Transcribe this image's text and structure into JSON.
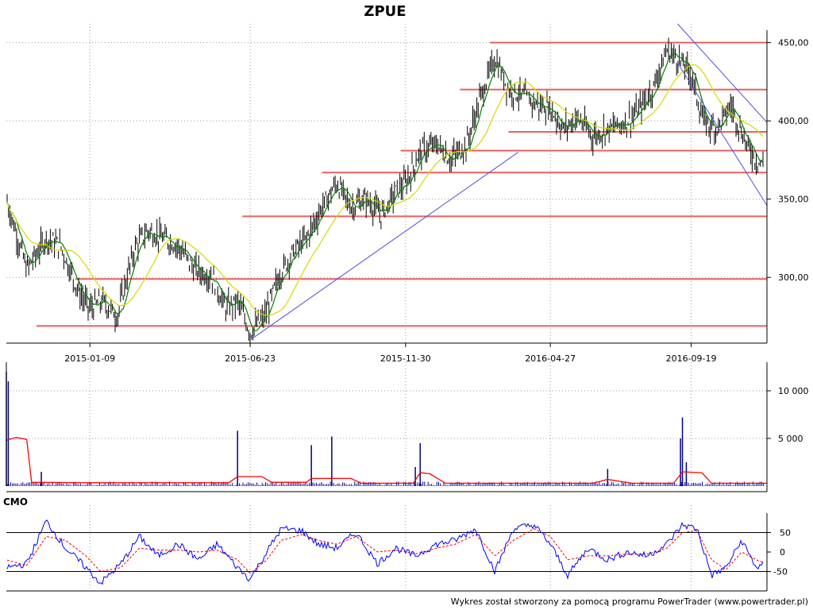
{
  "title": "ZPUE",
  "footer": "Wykres został stworzony za pomocą programu PowerTrader (www.powertrader.pl)",
  "cmo_label": "CMO",
  "colors": {
    "candle": "#000000",
    "sma_short": "#008000",
    "sma_long": "#d8d800",
    "support_resistance": "#e86060",
    "trendline": "#5050e0",
    "volume": "#00008b",
    "volume_avg": "#ff0000",
    "cmo": "#0000ff",
    "cmo_signal": "#ff0000",
    "cmo_levels": "#000000"
  },
  "chart_data": [
    {
      "type": "line",
      "panel": "price",
      "title": "ZPUE",
      "x_tick_labels": [
        "2015-01-09",
        "2015-06-23",
        "2015-11-30",
        "2016-04-27",
        "2016-09-19"
      ],
      "y_tick_labels": [
        "450,00",
        "400,00",
        "350,00",
        "300,00"
      ],
      "x_range": [
        "2014-10-15",
        "2016-12-06"
      ],
      "ylim": [
        258,
        462
      ],
      "grid": true,
      "series": [
        {
          "values_kind": "close_approx",
          "x": [
            "2014-10-15",
            "2014-11-05",
            "2014-11-25",
            "2014-12-10",
            "2014-12-29",
            "2015-01-09",
            "2015-01-22",
            "2015-02-06",
            "2015-02-16",
            "2015-02-25",
            "2015-03-10",
            "2015-03-25",
            "2015-04-10",
            "2015-04-27",
            "2015-05-15",
            "2015-05-29",
            "2015-06-10",
            "2015-06-23",
            "2015-07-08",
            "2015-07-22",
            "2015-08-05",
            "2015-08-20",
            "2015-09-05",
            "2015-09-20",
            "2015-10-05",
            "2015-10-20",
            "2015-11-05",
            "2015-11-20",
            "2015-11-30",
            "2015-12-15",
            "2016-01-01",
            "2016-01-15",
            "2016-02-01",
            "2016-02-15",
            "2016-03-01",
            "2016-03-15",
            "2016-04-01",
            "2016-04-15",
            "2016-04-27",
            "2016-05-10",
            "2016-05-25",
            "2016-06-10",
            "2016-06-25",
            "2016-07-10",
            "2016-07-25",
            "2016-08-10",
            "2016-08-25",
            "2016-09-05",
            "2016-09-19",
            "2016-10-01",
            "2016-10-15",
            "2016-10-30",
            "2016-11-15",
            "2016-11-25",
            "2016-12-06"
          ],
          "values": [
            350,
            305,
            325,
            320,
            290,
            280,
            285,
            275,
            300,
            320,
            330,
            325,
            320,
            305,
            300,
            280,
            285,
            265,
            275,
            300,
            315,
            325,
            345,
            360,
            345,
            350,
            340,
            355,
            360,
            380,
            385,
            375,
            385,
            415,
            440,
            420,
            415,
            410,
            408,
            395,
            402,
            390,
            395,
            398,
            405,
            420,
            445,
            440,
            430,
            400,
            395,
            410,
            385,
            375,
            370
          ]
        }
      ],
      "support_resistance_levels": [
        450,
        420,
        393,
        381,
        367,
        339,
        299,
        269
      ],
      "trendlines": [
        {
          "from": {
            "x": "2015-06-23",
            "y": 260
          },
          "to": {
            "x": "2016-03-25",
            "y": 380
          }
        },
        {
          "from": {
            "x": "2016-09-05",
            "y": 437
          },
          "to": {
            "x": "2016-12-06",
            "y": 346
          }
        },
        {
          "from": {
            "x": "2016-09-05",
            "y": 462
          },
          "to": {
            "x": "2016-12-06",
            "y": 399
          }
        }
      ]
    },
    {
      "type": "bar",
      "panel": "volume",
      "y_tick_labels": [
        "10 000",
        "5 000"
      ],
      "ylim": [
        0,
        13000
      ],
      "grid": true,
      "spikes": [
        {
          "x": "2014-10-15",
          "value": 12000
        },
        {
          "x": "2014-10-17",
          "value": 11000
        },
        {
          "x": "2014-11-20",
          "value": 1500
        },
        {
          "x": "2015-06-10",
          "value": 5800
        },
        {
          "x": "2015-08-25",
          "value": 4300
        },
        {
          "x": "2015-09-15",
          "value": 5200
        },
        {
          "x": "2015-12-15",
          "value": 4500
        },
        {
          "x": "2015-12-10",
          "value": 2000
        },
        {
          "x": "2016-06-25",
          "value": 1800
        },
        {
          "x": "2016-09-10",
          "value": 7200
        },
        {
          "x": "2016-09-08",
          "value": 5000
        },
        {
          "x": "2016-09-14",
          "value": 2500
        }
      ],
      "baseline_value": 250,
      "avg_series": {
        "x": [
          "2014-10-15",
          "2014-10-25",
          "2014-11-05",
          "2014-11-10",
          "2015-01-01",
          "2015-03-01",
          "2015-06-01",
          "2015-06-10",
          "2015-07-05",
          "2015-07-15",
          "2015-08-20",
          "2015-08-25",
          "2015-10-05",
          "2015-10-15",
          "2015-12-08",
          "2015-12-15",
          "2015-12-25",
          "2016-01-10",
          "2016-06-10",
          "2016-06-25",
          "2016-07-20",
          "2016-09-01",
          "2016-09-10",
          "2016-09-30",
          "2016-10-10",
          "2016-12-06"
        ],
        "values": [
          4800,
          5100,
          4900,
          400,
          350,
          350,
          350,
          1000,
          1000,
          400,
          400,
          800,
          800,
          300,
          300,
          1400,
          1300,
          300,
          300,
          700,
          300,
          300,
          1500,
          1400,
          300,
          300
        ]
      }
    },
    {
      "type": "line",
      "panel": "cmo",
      "title": "CMO",
      "y_tick_labels": [
        "50",
        "0",
        "-50"
      ],
      "ylim": [
        -100,
        100
      ],
      "levels": [
        50,
        -50
      ],
      "series": [
        {
          "values_kind": "cmo",
          "x": [
            "2014-10-15",
            "2014-11-05",
            "2014-11-25",
            "2014-12-15",
            "2015-01-05",
            "2015-01-20",
            "2015-02-10",
            "2015-03-01",
            "2015-03-20",
            "2015-04-10",
            "2015-05-01",
            "2015-05-20",
            "2015-06-10",
            "2015-06-23",
            "2015-07-10",
            "2015-07-25",
            "2015-08-15",
            "2015-09-01",
            "2015-09-20",
            "2015-10-10",
            "2015-11-01",
            "2015-11-20",
            "2015-12-10",
            "2016-01-01",
            "2016-01-20",
            "2016-02-10",
            "2016-03-01",
            "2016-03-20",
            "2016-04-10",
            "2016-04-27",
            "2016-05-15",
            "2016-06-05",
            "2016-06-25",
            "2016-07-15",
            "2016-08-05",
            "2016-08-25",
            "2016-09-10",
            "2016-09-25",
            "2016-10-10",
            "2016-10-25",
            "2016-11-10",
            "2016-11-25",
            "2016-12-06"
          ],
          "values": [
            -40,
            -30,
            80,
            10,
            -40,
            -80,
            -30,
            40,
            -10,
            20,
            -20,
            20,
            -40,
            -70,
            0,
            60,
            55,
            20,
            10,
            50,
            -30,
            10,
            -10,
            20,
            30,
            60,
            -50,
            60,
            70,
            20,
            -60,
            10,
            -20,
            0,
            -10,
            20,
            70,
            60,
            -60,
            -40,
            30,
            -40,
            -30
          ]
        },
        {
          "values_kind": "cmo_signal",
          "x": [
            "2014-10-15",
            "2014-11-05",
            "2014-11-25",
            "2014-12-15",
            "2015-01-05",
            "2015-01-20",
            "2015-02-10",
            "2015-03-01",
            "2015-03-20",
            "2015-04-10",
            "2015-05-01",
            "2015-05-20",
            "2015-06-10",
            "2015-06-23",
            "2015-07-10",
            "2015-07-25",
            "2015-08-15",
            "2015-09-01",
            "2015-09-20",
            "2015-10-10",
            "2015-11-01",
            "2015-11-20",
            "2015-12-10",
            "2016-01-01",
            "2016-01-20",
            "2016-02-10",
            "2016-03-01",
            "2016-03-20",
            "2016-04-10",
            "2016-04-27",
            "2016-05-15",
            "2016-06-05",
            "2016-06-25",
            "2016-07-15",
            "2016-08-05",
            "2016-08-25",
            "2016-09-10",
            "2016-09-25",
            "2016-10-10",
            "2016-10-25",
            "2016-11-10",
            "2016-11-25",
            "2016-12-06"
          ],
          "values": [
            -20,
            -35,
            40,
            30,
            -10,
            -50,
            -40,
            10,
            5,
            5,
            0,
            5,
            -20,
            -55,
            -20,
            30,
            45,
            30,
            20,
            40,
            0,
            5,
            -5,
            10,
            20,
            45,
            -10,
            30,
            60,
            40,
            -20,
            -10,
            -10,
            -5,
            -5,
            10,
            50,
            55,
            -20,
            -45,
            0,
            -20,
            -30
          ]
        }
      ]
    }
  ]
}
